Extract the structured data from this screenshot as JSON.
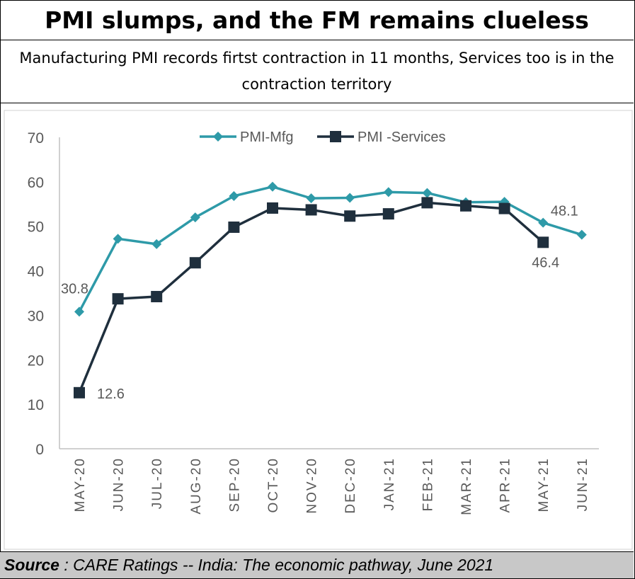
{
  "header": {
    "title": "PMI slumps, and the FM remains clueless",
    "subtitle": "Manufacturing PMI records firtst contraction in 11 months, Services too is in the contraction territory"
  },
  "footer": {
    "source_label": "Source",
    "source_text": " : CARE Ratings -- India: The economic pathway, June 2021"
  },
  "chart_data": {
    "type": "line",
    "categories": [
      "MAY-20",
      "JUN-20",
      "JUL-20",
      "AUG-20",
      "SEP-20",
      "OCT-20",
      "NOV-20",
      "DEC-20",
      "JAN-21",
      "FEB-21",
      "MAR-21",
      "APR-21",
      "MAY-21",
      "JUN-21"
    ],
    "series": [
      {
        "name": "PMI-Mfg",
        "color": "#2e9aa8",
        "marker": "diamond",
        "values": [
          30.8,
          47.2,
          46.0,
          52.0,
          56.8,
          58.9,
          56.3,
          56.4,
          57.7,
          57.5,
          55.4,
          55.5,
          50.8,
          48.1
        ]
      },
      {
        "name": "PMI -Services",
        "color": "#1f2f3d",
        "marker": "square",
        "values": [
          12.6,
          33.7,
          34.2,
          41.8,
          49.8,
          54.1,
          53.7,
          52.3,
          52.8,
          55.3,
          54.6,
          54.0,
          46.4,
          null
        ]
      }
    ],
    "data_labels": [
      {
        "series": 0,
        "index": 0,
        "text": "30.8"
      },
      {
        "series": 0,
        "index": 13,
        "text": "48.1"
      },
      {
        "series": 1,
        "index": 0,
        "text": "12.6"
      },
      {
        "series": 1,
        "index": 12,
        "text": "46.4"
      }
    ],
    "y_ticks": [
      "0",
      "10",
      "20",
      "30",
      "40",
      "50",
      "60",
      "70"
    ],
    "ylim": [
      0,
      70
    ],
    "grid": false,
    "legend": "top"
  }
}
